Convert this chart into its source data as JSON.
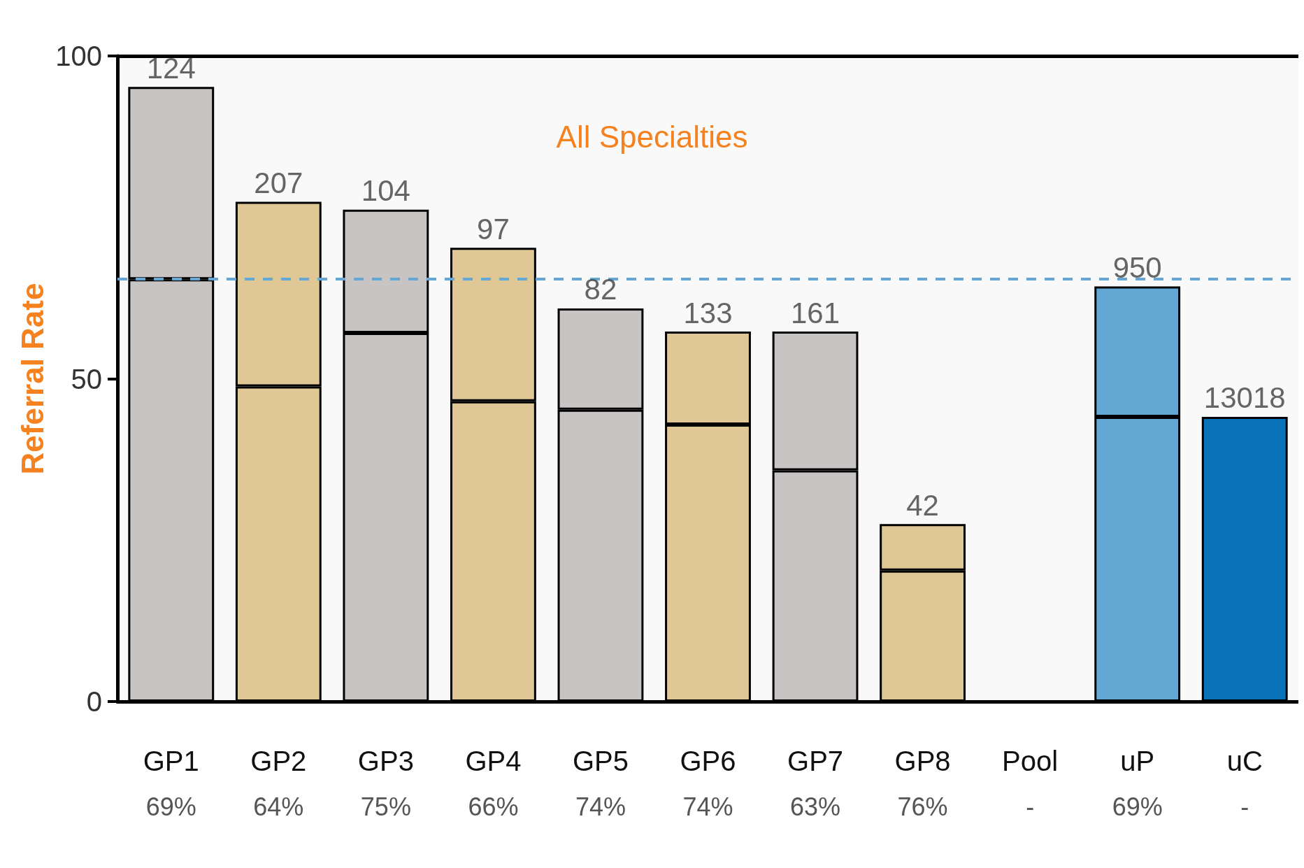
{
  "chart_data": {
    "type": "bar",
    "title": "All Specialties",
    "ylabel": "Referral Rate",
    "stacked": true,
    "categories": [
      "GP1\n69%",
      "GP2\n64%",
      "GP3\n75%",
      "GP4\n66%",
      "GP5\n74%",
      "GP6\n74%",
      "GP7\n63%",
      "GP8\n76%",
      "Pool\n-",
      "uP\n69%",
      "uC\n-"
    ],
    "series": [
      {
        "colors": [
          "#c8c4c3",
          "#e0c896",
          "#c8c4c3",
          "#e0c896",
          "#c8c4c3",
          "#e0c896",
          "#c8c4c3",
          "#e0c896",
          "#c8c4c3",
          "#63a7d4",
          "#0a72b8"
        ],
        "values": [
          65.4,
          48.8,
          57.1,
          46.5,
          45.2,
          42.9,
          35.8,
          20.3,
          null,
          44.1,
          44.1
        ]
      },
      {
        "colors": [
          "#c8c4c3",
          "#e0c896",
          "#c8c4c3",
          "#e0c896",
          "#c8c4c3",
          "#e0c896",
          "#c8c4c3",
          "#e0c896",
          "#c8c4c3",
          "#63a7d4",
          "#0a72b8"
        ],
        "values": [
          29.8,
          28.6,
          19.1,
          23.8,
          15.7,
          14.4,
          21.5,
          7.2,
          null,
          20.2,
          null
        ]
      }
    ],
    "annotations": [
      {
        "text": "124",
        "x": "GP1\n69%",
        "y": 95.2
      },
      {
        "text": "207",
        "x": "GP2\n64%",
        "y": 77.4
      },
      {
        "text": "104",
        "x": "GP3\n75%",
        "y": 76.2
      },
      {
        "text": "97",
        "x": "GP4\n66%",
        "y": 70.3
      },
      {
        "text": "82",
        "x": "GP5\n74%",
        "y": 60.9
      },
      {
        "text": "133",
        "x": "GP6\n74%",
        "y": 57.3
      },
      {
        "text": "161",
        "x": "GP7\n63%",
        "y": 57.3
      },
      {
        "text": "42",
        "x": "GP8\n76%",
        "y": 27.5
      },
      {
        "text": "950",
        "x": "uP\n69%",
        "y": 64.3
      },
      {
        "text": "13018",
        "x": "uC\n-",
        "y": 44.1
      }
    ],
    "ylim": [
      0,
      100
    ],
    "yticks": [
      0,
      50,
      100
    ],
    "ref_lines": [
      {
        "axis": "y",
        "value": 65.5,
        "color": "#63a7d4",
        "line_style": "dashed"
      }
    ],
    "grid": false
  }
}
